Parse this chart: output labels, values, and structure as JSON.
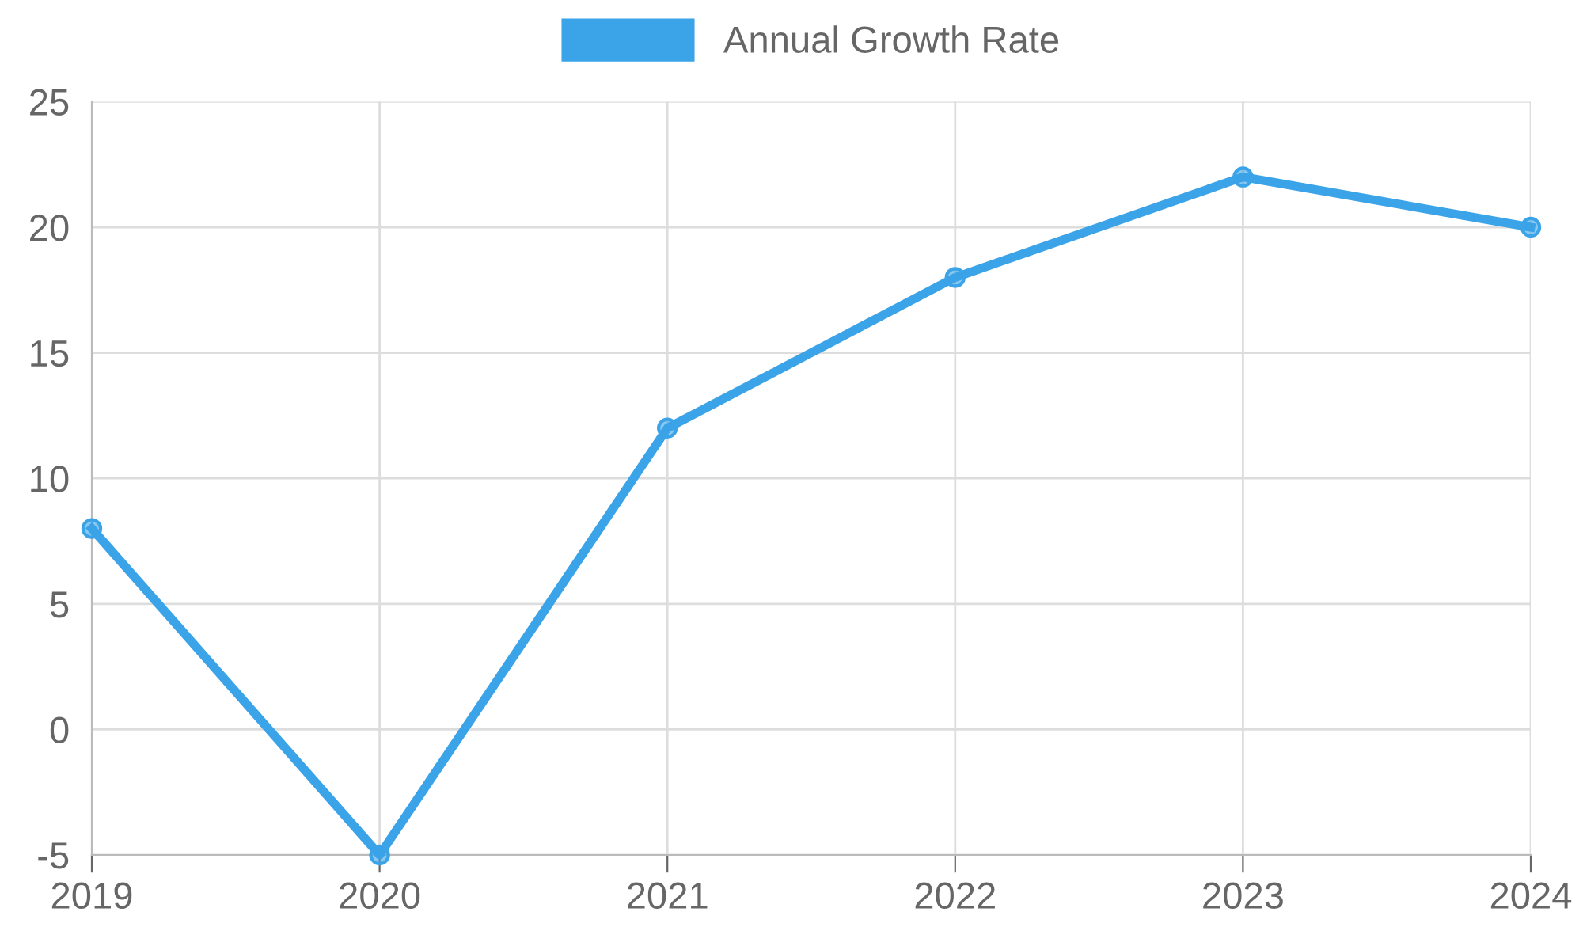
{
  "chart_data": {
    "type": "line",
    "categories": [
      "2019",
      "2020",
      "2021",
      "2022",
      "2023",
      "2024"
    ],
    "series": [
      {
        "name": "Annual Growth Rate",
        "color": "#3ba3e8",
        "values": [
          8,
          -5,
          12,
          18,
          22,
          20
        ]
      }
    ],
    "ylim": [
      -5,
      25
    ],
    "yticks": [
      -5,
      0,
      5,
      10,
      15,
      20,
      25
    ],
    "grid": true,
    "legend": "top",
    "marker": "circle",
    "line_style": "solid"
  }
}
